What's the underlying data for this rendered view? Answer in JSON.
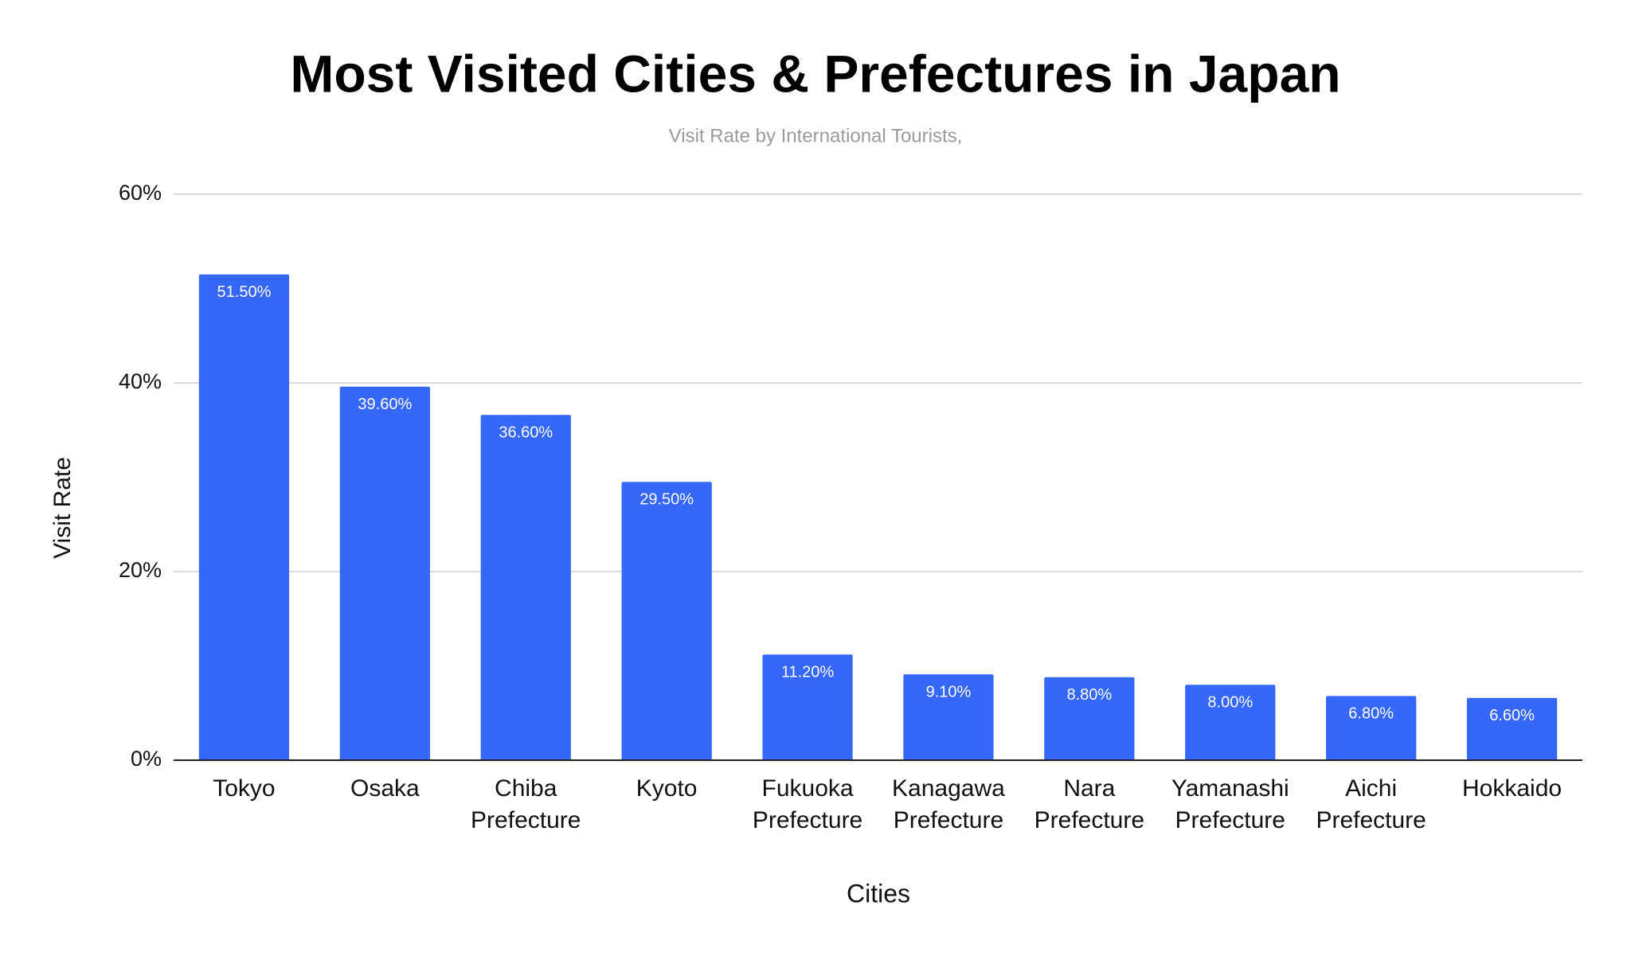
{
  "chart_data": {
    "type": "bar",
    "title": "Most Visited Cities & Prefectures in Japan",
    "subtitle": "Visit Rate by International Tourists,",
    "x_label": "Cities",
    "y_label": "Visit Rate",
    "categories": [
      "Tokyo",
      "Osaka",
      "Chiba Prefecture",
      "Kyoto",
      "Fukuoka Prefecture",
      "Kanagawa Prefecture",
      "Nara Prefecture",
      "Yamanashi Prefecture",
      "Aichi Prefecture",
      "Hokkaido"
    ],
    "values": [
      51.5,
      39.6,
      36.6,
      29.5,
      11.2,
      9.1,
      8.8,
      8.0,
      6.8,
      6.6
    ],
    "value_labels": [
      "51.50%",
      "39.60%",
      "36.60%",
      "29.50%",
      "11.20%",
      "9.10%",
      "8.80%",
      "8.00%",
      "6.80%",
      "6.60%"
    ],
    "color": "#3567fb",
    "ylim": [
      0,
      60
    ],
    "yticks": [
      {
        "value": 0,
        "label": "0%"
      },
      {
        "value": 20,
        "label": "20%"
      },
      {
        "value": 40,
        "label": "40%"
      },
      {
        "value": 60,
        "label": "60%"
      }
    ],
    "grid": true
  }
}
